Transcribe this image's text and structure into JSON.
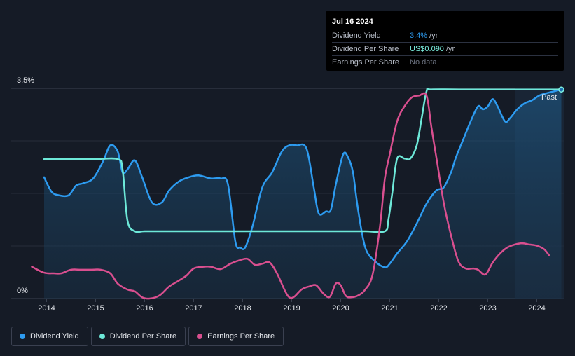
{
  "tooltip": {
    "date": "Jul 16 2024",
    "rows": [
      {
        "label": "Dividend Yield",
        "value": "3.4%",
        "unit": "/yr"
      },
      {
        "label": "Dividend Per Share",
        "value": "US$0.090",
        "unit": "/yr"
      },
      {
        "label": "Earnings Per Share",
        "value": "No data",
        "unit": ""
      }
    ]
  },
  "legend": [
    {
      "label": "Dividend Yield",
      "color": "#2d9bf0"
    },
    {
      "label": "Dividend Per Share",
      "color": "#6de8d8"
    },
    {
      "label": "Earnings Per Share",
      "color": "#d94f8f"
    }
  ],
  "chart_data": {
    "type": "line",
    "title": "",
    "xlabel": "",
    "ylabel": "",
    "ylim": [
      0,
      3.5
    ],
    "xlim": [
      2013.75,
      2024.55
    ],
    "ytick_labels": [
      "0%",
      "3.5%"
    ],
    "x_ticks": [
      2014,
      2015,
      2016,
      2017,
      2018,
      2019,
      2020,
      2021,
      2022,
      2023,
      2024
    ],
    "x_tick_labels": [
      "2014",
      "2015",
      "2016",
      "2017",
      "2018",
      "2019",
      "2020",
      "2021",
      "2022",
      "2023",
      "2024"
    ],
    "past_label": "Past",
    "forecast_start": 2023.55,
    "grid": true,
    "series": [
      {
        "name": "Dividend Yield",
        "color": "#2d9bf0",
        "fill": true,
        "x": [
          2013.95,
          2014.1,
          2014.25,
          2014.45,
          2014.6,
          2014.75,
          2014.95,
          2015.15,
          2015.3,
          2015.45,
          2015.55,
          2015.65,
          2015.8,
          2015.95,
          2016.15,
          2016.35,
          2016.5,
          2016.7,
          2016.9,
          2017.1,
          2017.35,
          2017.55,
          2017.7,
          2017.85,
          2017.95,
          2018.05,
          2018.2,
          2018.4,
          2018.6,
          2018.8,
          2018.95,
          2019.1,
          2019.3,
          2019.45,
          2019.55,
          2019.7,
          2019.8,
          2019.9,
          2020.05,
          2020.15,
          2020.25,
          2020.35,
          2020.5,
          2020.7,
          2020.9,
          2021.0,
          2021.15,
          2021.35,
          2021.55,
          2021.75,
          2021.95,
          2022.1,
          2022.25,
          2022.35,
          2022.5,
          2022.65,
          2022.8,
          2022.9,
          2023.0,
          2023.1,
          2023.2,
          2023.35,
          2023.45,
          2023.6,
          2023.75,
          2023.9,
          2024.05,
          2024.2,
          2024.35,
          2024.5
        ],
        "y": [
          2.02,
          1.78,
          1.72,
          1.72,
          1.88,
          1.92,
          2.0,
          2.28,
          2.55,
          2.45,
          2.1,
          2.15,
          2.3,
          2.02,
          1.6,
          1.6,
          1.8,
          1.95,
          2.02,
          2.05,
          2.0,
          2.0,
          1.9,
          0.95,
          0.85,
          0.85,
          1.2,
          1.85,
          2.1,
          2.45,
          2.55,
          2.55,
          2.5,
          1.85,
          1.42,
          1.45,
          1.48,
          1.9,
          2.4,
          2.35,
          2.1,
          1.5,
          0.85,
          0.62,
          0.52,
          0.58,
          0.75,
          0.95,
          1.25,
          1.58,
          1.8,
          1.85,
          2.1,
          2.35,
          2.65,
          2.95,
          3.2,
          3.15,
          3.2,
          3.32,
          3.2,
          2.95,
          3.0,
          3.15,
          3.25,
          3.3,
          3.38,
          3.42,
          3.45,
          3.48
        ]
      },
      {
        "name": "Dividend Per Share",
        "color": "#6de8d8",
        "fill": false,
        "x": [
          2013.95,
          2014.5,
          2015.0,
          2015.45,
          2015.55,
          2015.65,
          2015.8,
          2016.0,
          2016.5,
          2017.0,
          2017.5,
          2018.0,
          2018.5,
          2019.0,
          2019.5,
          2020.0,
          2020.5,
          2020.9,
          2020.97,
          2021.05,
          2021.15,
          2021.3,
          2021.42,
          2021.55,
          2021.65,
          2021.75,
          2021.85,
          2022.5,
          2023.0,
          2023.5,
          2024.0,
          2024.5
        ],
        "y": [
          2.32,
          2.32,
          2.32,
          2.32,
          2.15,
          1.3,
          1.12,
          1.12,
          1.12,
          1.12,
          1.12,
          1.12,
          1.12,
          1.12,
          1.12,
          1.12,
          1.12,
          1.12,
          1.3,
          1.75,
          2.33,
          2.33,
          2.33,
          2.55,
          3.0,
          3.45,
          3.48,
          3.48,
          3.48,
          3.48,
          3.48,
          3.48
        ]
      },
      {
        "name": "Earnings Per Share",
        "color": "#d94f8f",
        "fill": false,
        "x": [
          2013.7,
          2013.95,
          2014.15,
          2014.3,
          2014.5,
          2014.7,
          2014.9,
          2015.1,
          2015.3,
          2015.45,
          2015.65,
          2015.8,
          2015.95,
          2016.1,
          2016.3,
          2016.5,
          2016.7,
          2016.85,
          2017.0,
          2017.2,
          2017.35,
          2017.55,
          2017.75,
          2017.95,
          2018.1,
          2018.25,
          2018.4,
          2018.55,
          2018.7,
          2018.85,
          2018.95,
          2019.05,
          2019.2,
          2019.35,
          2019.5,
          2019.65,
          2019.78,
          2019.9,
          2020.0,
          2020.1,
          2020.2,
          2020.35,
          2020.5,
          2020.65,
          2020.8,
          2020.9,
          2021.0,
          2021.15,
          2021.3,
          2021.45,
          2021.6,
          2021.75,
          2021.85,
          2021.95,
          2022.1,
          2022.25,
          2022.4,
          2022.55,
          2022.7,
          2022.8,
          2022.95,
          2023.1,
          2023.25,
          2023.4,
          2023.55,
          2023.7,
          2023.85,
          2024.0,
          2024.15,
          2024.25
        ],
        "y": [
          0.53,
          0.43,
          0.42,
          0.42,
          0.48,
          0.48,
          0.48,
          0.48,
          0.42,
          0.25,
          0.15,
          0.12,
          0.02,
          0.0,
          0.05,
          0.2,
          0.3,
          0.38,
          0.5,
          0.53,
          0.53,
          0.49,
          0.58,
          0.64,
          0.66,
          0.56,
          0.58,
          0.6,
          0.42,
          0.15,
          0.02,
          0.03,
          0.15,
          0.2,
          0.22,
          0.08,
          0.03,
          0.25,
          0.22,
          0.05,
          0.02,
          0.05,
          0.15,
          0.4,
          1.2,
          2.0,
          2.4,
          2.95,
          3.2,
          3.35,
          3.38,
          3.38,
          2.85,
          2.35,
          1.6,
          1.05,
          0.62,
          0.5,
          0.5,
          0.48,
          0.4,
          0.6,
          0.75,
          0.85,
          0.9,
          0.92,
          0.9,
          0.88,
          0.82,
          0.72
        ]
      }
    ]
  }
}
